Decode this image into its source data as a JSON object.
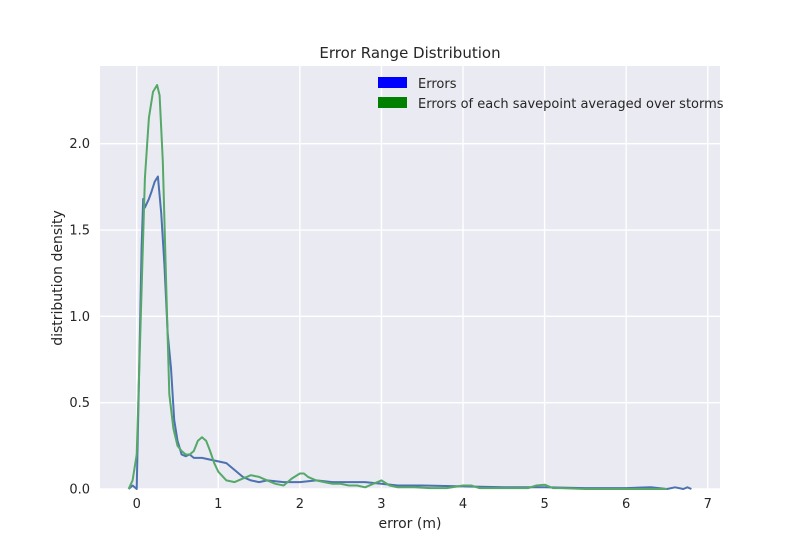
{
  "chart_data": {
    "type": "line",
    "title": "Error Range Distribution",
    "xlabel": "error (m)",
    "ylabel": "distribution density",
    "xlim": [
      -0.45,
      7.15
    ],
    "ylim": [
      0,
      2.45
    ],
    "xticks": [
      0,
      1,
      2,
      3,
      4,
      5,
      6,
      7
    ],
    "yticks": [
      0.0,
      0.5,
      1.0,
      1.5,
      2.0
    ],
    "xtick_labels": [
      "0",
      "1",
      "2",
      "3",
      "4",
      "5",
      "6",
      "7"
    ],
    "ytick_labels": [
      "0.0",
      "0.5",
      "1.0",
      "1.5",
      "2.0"
    ],
    "grid": true,
    "background_color": "#EAEAF2",
    "legend_position": "top-right",
    "legend": [
      {
        "label": "Errors",
        "swatch_color": "#0000FF"
      },
      {
        "label": "Errors of each savepoint averaged over storms",
        "swatch_color": "#008000"
      }
    ],
    "series": [
      {
        "name": "Errors",
        "color": "#4C72B0",
        "x": [
          -0.1,
          -0.05,
          0.0,
          0.03,
          0.06,
          0.08,
          0.1,
          0.12,
          0.15,
          0.18,
          0.22,
          0.26,
          0.3,
          0.34,
          0.38,
          0.42,
          0.46,
          0.5,
          0.55,
          0.6,
          0.65,
          0.7,
          0.8,
          0.9,
          1.0,
          1.1,
          1.2,
          1.3,
          1.4,
          1.5,
          1.6,
          1.8,
          2.0,
          2.2,
          2.4,
          2.6,
          2.8,
          3.0,
          3.2,
          3.5,
          4.0,
          4.5,
          5.0,
          5.5,
          6.0,
          6.3,
          6.5,
          6.6,
          6.7,
          6.75,
          6.8
        ],
        "y": [
          0.0,
          0.02,
          0.0,
          0.7,
          1.4,
          1.68,
          1.63,
          1.65,
          1.68,
          1.72,
          1.78,
          1.81,
          1.6,
          1.3,
          0.9,
          0.7,
          0.4,
          0.28,
          0.2,
          0.19,
          0.2,
          0.18,
          0.18,
          0.17,
          0.16,
          0.15,
          0.11,
          0.07,
          0.05,
          0.04,
          0.05,
          0.04,
          0.04,
          0.05,
          0.04,
          0.04,
          0.04,
          0.03,
          0.02,
          0.02,
          0.015,
          0.01,
          0.01,
          0.005,
          0.005,
          0.01,
          0.0,
          0.01,
          0.0,
          0.01,
          0.0
        ]
      },
      {
        "name": "Errors of each savepoint averaged over storms",
        "color": "#55A868",
        "x": [
          -0.1,
          -0.05,
          0.0,
          0.05,
          0.1,
          0.15,
          0.2,
          0.25,
          0.28,
          0.32,
          0.36,
          0.4,
          0.45,
          0.5,
          0.55,
          0.6,
          0.65,
          0.7,
          0.75,
          0.8,
          0.85,
          0.9,
          0.95,
          1.0,
          1.1,
          1.2,
          1.3,
          1.4,
          1.5,
          1.6,
          1.7,
          1.8,
          1.9,
          2.0,
          2.05,
          2.1,
          2.2,
          2.3,
          2.4,
          2.5,
          2.6,
          2.7,
          2.8,
          2.9,
          3.0,
          3.1,
          3.2,
          3.4,
          3.6,
          3.8,
          4.0,
          4.1,
          4.2,
          4.5,
          4.8,
          4.9,
          5.0,
          5.1,
          5.2,
          5.5,
          6.0,
          6.5
        ],
        "y": [
          0.0,
          0.05,
          0.2,
          1.0,
          1.8,
          2.15,
          2.3,
          2.34,
          2.28,
          1.9,
          1.2,
          0.55,
          0.35,
          0.25,
          0.22,
          0.2,
          0.2,
          0.22,
          0.28,
          0.3,
          0.28,
          0.22,
          0.15,
          0.1,
          0.05,
          0.04,
          0.06,
          0.08,
          0.07,
          0.05,
          0.03,
          0.02,
          0.06,
          0.09,
          0.09,
          0.07,
          0.05,
          0.04,
          0.03,
          0.03,
          0.02,
          0.02,
          0.01,
          0.03,
          0.05,
          0.02,
          0.01,
          0.01,
          0.005,
          0.005,
          0.02,
          0.02,
          0.005,
          0.005,
          0.005,
          0.02,
          0.025,
          0.005,
          0.005,
          0.0,
          0.0,
          0.0
        ]
      }
    ]
  }
}
